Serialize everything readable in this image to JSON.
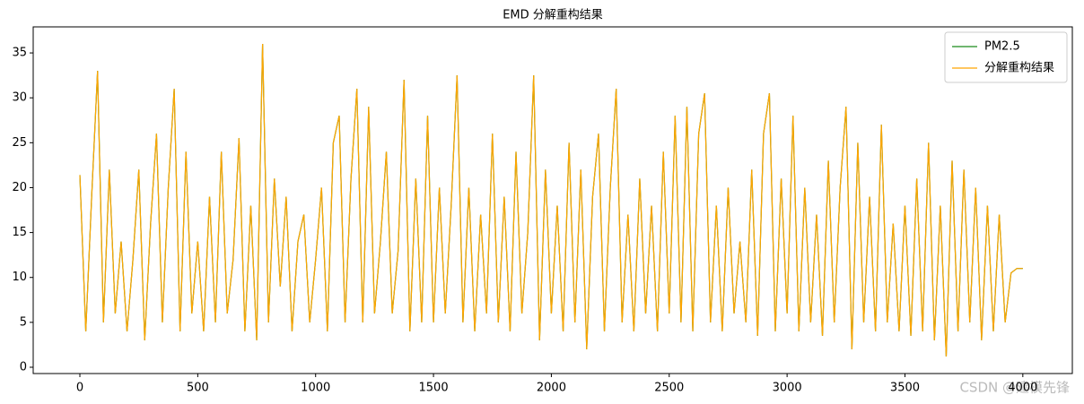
{
  "chart_data": {
    "type": "line",
    "title": "EMD 分解重构结果",
    "x": [
      0,
      25,
      50,
      75,
      100,
      125,
      150,
      175,
      200,
      225,
      250,
      275,
      300,
      325,
      350,
      375,
      400,
      425,
      450,
      475,
      500,
      525,
      550,
      575,
      600,
      625,
      650,
      675,
      700,
      725,
      750,
      775,
      800,
      825,
      850,
      875,
      900,
      925,
      950,
      975,
      1000,
      1025,
      1050,
      1075,
      1100,
      1125,
      1150,
      1175,
      1200,
      1225,
      1250,
      1275,
      1300,
      1325,
      1350,
      1375,
      1400,
      1425,
      1450,
      1475,
      1500,
      1525,
      1550,
      1575,
      1600,
      1625,
      1650,
      1675,
      1700,
      1725,
      1750,
      1775,
      1800,
      1825,
      1850,
      1875,
      1900,
      1925,
      1950,
      1975,
      2000,
      2025,
      2050,
      2075,
      2100,
      2125,
      2150,
      2175,
      2200,
      2225,
      2250,
      2275,
      2300,
      2325,
      2350,
      2375,
      2400,
      2425,
      2450,
      2475,
      2500,
      2525,
      2550,
      2575,
      2600,
      2625,
      2650,
      2675,
      2700,
      2725,
      2750,
      2775,
      2800,
      2825,
      2850,
      2875,
      2900,
      2925,
      2950,
      2975,
      3000,
      3025,
      3050,
      3075,
      3100,
      3125,
      3150,
      3175,
      3200,
      3225,
      3250,
      3275,
      3300,
      3325,
      3350,
      3375,
      3400,
      3425,
      3450,
      3475,
      3500,
      3525,
      3550,
      3575,
      3600,
      3625,
      3650,
      3675,
      3700,
      3725,
      3750,
      3775,
      3800,
      3825,
      3850,
      3875,
      3900,
      3925,
      3950,
      3975,
      4000
    ],
    "series": [
      {
        "name": "PM2.5",
        "color": "#1a8a1a",
        "values": [
          21.4,
          4,
          19,
          33,
          5,
          22,
          6,
          14,
          4,
          12,
          22,
          3,
          16,
          26,
          5,
          20,
          31,
          4,
          24,
          6,
          14,
          4,
          19,
          5,
          24,
          6,
          12,
          25.5,
          4,
          18,
          3,
          36,
          5,
          21,
          9,
          19,
          4,
          14,
          17,
          5,
          12,
          20,
          4,
          25,
          28,
          5,
          21,
          31,
          5,
          29,
          6,
          14,
          24,
          6,
          13,
          32,
          4,
          21,
          5,
          28,
          5,
          20,
          6,
          18,
          32.5,
          5,
          20,
          4,
          17,
          6,
          26,
          5,
          19,
          4,
          24,
          6,
          15,
          32.5,
          3,
          22,
          6,
          18,
          4,
          25,
          5,
          22,
          2,
          19,
          26,
          4,
          20,
          31,
          5,
          17,
          4,
          21,
          6,
          18,
          4,
          24,
          6,
          28,
          5,
          29,
          4,
          26,
          30.5,
          5,
          18,
          4,
          20,
          6,
          14,
          5,
          22,
          3.5,
          26,
          30.5,
          4,
          21,
          6,
          28,
          4,
          20,
          5,
          17,
          3.5,
          23,
          5,
          20,
          29,
          2,
          25,
          5,
          19,
          4,
          27,
          5,
          16,
          4,
          18,
          3.5,
          21,
          4,
          25,
          3,
          18,
          1.2,
          23,
          4,
          22,
          5,
          20,
          3,
          18,
          4,
          17,
          5,
          10.5,
          11,
          11
        ]
      },
      {
        "name": "分解重构结果",
        "color": "#ffa500",
        "values": [
          21.4,
          4,
          19,
          33,
          5,
          22,
          6,
          14,
          4,
          12,
          22,
          3,
          16,
          26,
          5,
          20,
          31,
          4,
          24,
          6,
          14,
          4,
          19,
          5,
          24,
          6,
          12,
          25.5,
          4,
          18,
          3,
          36,
          5,
          21,
          9,
          19,
          4,
          14,
          17,
          5,
          12,
          20,
          4,
          25,
          28,
          5,
          21,
          31,
          5,
          29,
          6,
          14,
          24,
          6,
          13,
          32,
          4,
          21,
          5,
          28,
          5,
          20,
          6,
          18,
          32.5,
          5,
          20,
          4,
          17,
          6,
          26,
          5,
          19,
          4,
          24,
          6,
          15,
          32.5,
          3,
          22,
          6,
          18,
          4,
          25,
          5,
          22,
          2,
          19,
          26,
          4,
          20,
          31,
          5,
          17,
          4,
          21,
          6,
          18,
          4,
          24,
          6,
          28,
          5,
          29,
          4,
          26,
          30.5,
          5,
          18,
          4,
          20,
          6,
          14,
          5,
          22,
          3.5,
          26,
          30.5,
          4,
          21,
          6,
          28,
          4,
          20,
          5,
          17,
          3.5,
          23,
          5,
          20,
          29,
          2,
          25,
          5,
          19,
          4,
          27,
          5,
          16,
          4,
          18,
          3.5,
          21,
          4,
          25,
          3,
          18,
          1.2,
          23,
          4,
          22,
          5,
          20,
          3,
          18,
          4,
          17,
          5,
          10.5,
          11,
          11
        ]
      }
    ],
    "xlim": [
      -198,
      4210
    ],
    "ylim": [
      -0.7,
      37.9
    ],
    "xticks": [
      0,
      500,
      1000,
      1500,
      2000,
      2500,
      3000,
      3500,
      4000
    ],
    "yticks": [
      0,
      5,
      10,
      15,
      20,
      25,
      30,
      35
    ],
    "legend": "upper right",
    "grid": false
  },
  "watermark": "CSDN @建模先锋"
}
